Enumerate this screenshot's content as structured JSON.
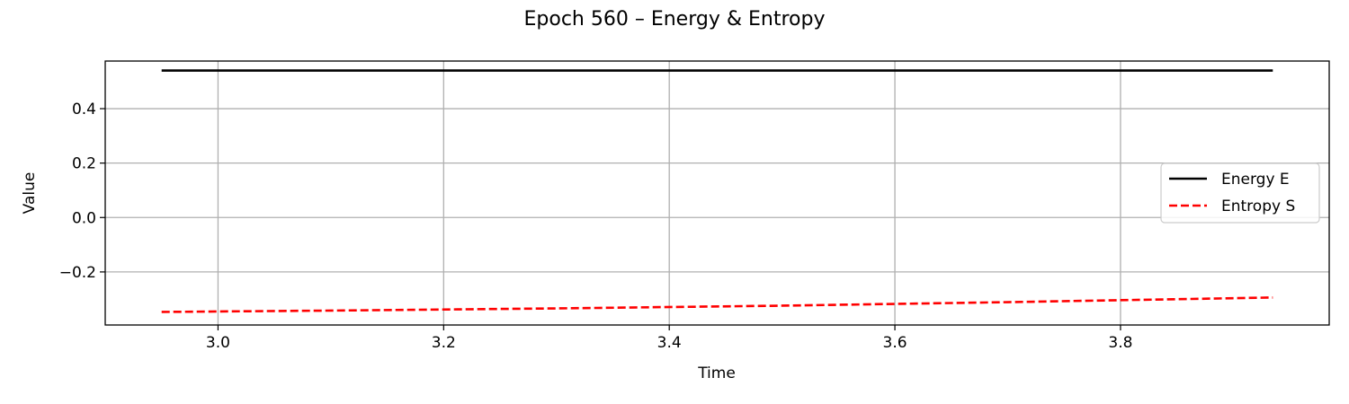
{
  "chart_data": {
    "type": "line",
    "title": "Epoch 560 – Energy & Entropy",
    "xlabel": "Time",
    "ylabel": "Value",
    "xlim": [
      2.9,
      3.985
    ],
    "ylim": [
      -0.395,
      0.575
    ],
    "xticks": [
      3.0,
      3.2,
      3.4,
      3.6,
      3.8
    ],
    "xtick_labels": [
      "3.0",
      "3.2",
      "3.4",
      "3.6",
      "3.8"
    ],
    "yticks": [
      -0.2,
      0.0,
      0.2,
      0.4
    ],
    "ytick_labels": [
      "−0.2",
      "0.0",
      "0.2",
      "0.4"
    ],
    "grid": true,
    "legend_position": "center-right",
    "series": [
      {
        "name": "Energy E",
        "color": "#000000",
        "linestyle": "solid",
        "x": [
          2.95,
          3.935
        ],
        "y": [
          0.54,
          0.54
        ]
      },
      {
        "name": "Entropy S",
        "color": "#ff0000",
        "linestyle": "dashed",
        "x": [
          2.95,
          3.1,
          3.3,
          3.5,
          3.7,
          3.935
        ],
        "y": [
          -0.347,
          -0.342,
          -0.334,
          -0.324,
          -0.311,
          -0.294
        ]
      }
    ]
  }
}
